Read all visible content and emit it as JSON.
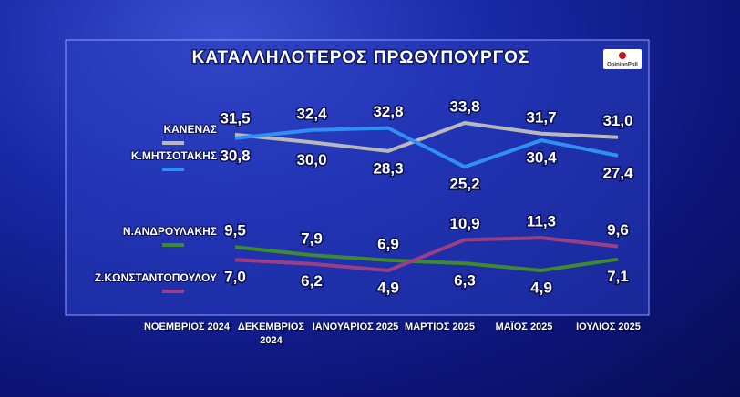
{
  "chart_data": {
    "type": "line",
    "title": "ΚΑΤΑΛΛΗΛΟΤΕΡΟΣ  ΠΡΩΘΥΠΟΥΡΓΟΣ",
    "source_logo": "OpinionPoll",
    "categories": [
      "ΝΟΕΜΒΡΙΟΣ 2024",
      "ΔΕΚΕΜΒΡΙΟΣ 2024",
      "ΙΑΝΟΥΑΡΙΟΣ 2025",
      "ΜΑΡΤΙΟΣ 2025",
      "ΜΑΪΟΣ 2025",
      "ΙΟΥΛΙΟΣ 2025"
    ],
    "series": [
      {
        "name": "ΚΑΝΕΝΑΣ",
        "color": "#b9b9b9",
        "values": [
          31.5,
          30.0,
          28.3,
          33.8,
          31.7,
          31.0
        ],
        "value_labels": [
          "31,5",
          "30,0",
          "28,3",
          "33,8",
          "31,7",
          "31,0"
        ]
      },
      {
        "name": "Κ.ΜΗΤΣΟΤΑΚΗΣ",
        "color": "#2f8ff5",
        "values": [
          30.8,
          32.4,
          32.8,
          25.2,
          30.4,
          27.4
        ],
        "value_labels": [
          "30,8",
          "32,4",
          "32,8",
          "25,2",
          "30,4",
          "27,4"
        ]
      },
      {
        "name": "Ν.ΑΝΔΡΟΥΛΑΚΗΣ",
        "color": "#3f8a2c",
        "values": [
          9.5,
          7.9,
          6.9,
          6.3,
          4.9,
          7.1
        ],
        "value_labels": [
          "9,5",
          "7,9",
          "6,9",
          "6,3",
          "4,9",
          "7,1"
        ]
      },
      {
        "name": "Ζ.ΚΩΝΣΤΑΝΤΟΠΟΥΛΟΥ",
        "color": "#9a3f86",
        "values": [
          7.0,
          6.2,
          4.9,
          10.9,
          11.3,
          9.6
        ],
        "value_labels": [
          "7,0",
          "6,2",
          "4,9",
          "10,9",
          "11,3",
          "9,6"
        ]
      }
    ]
  }
}
